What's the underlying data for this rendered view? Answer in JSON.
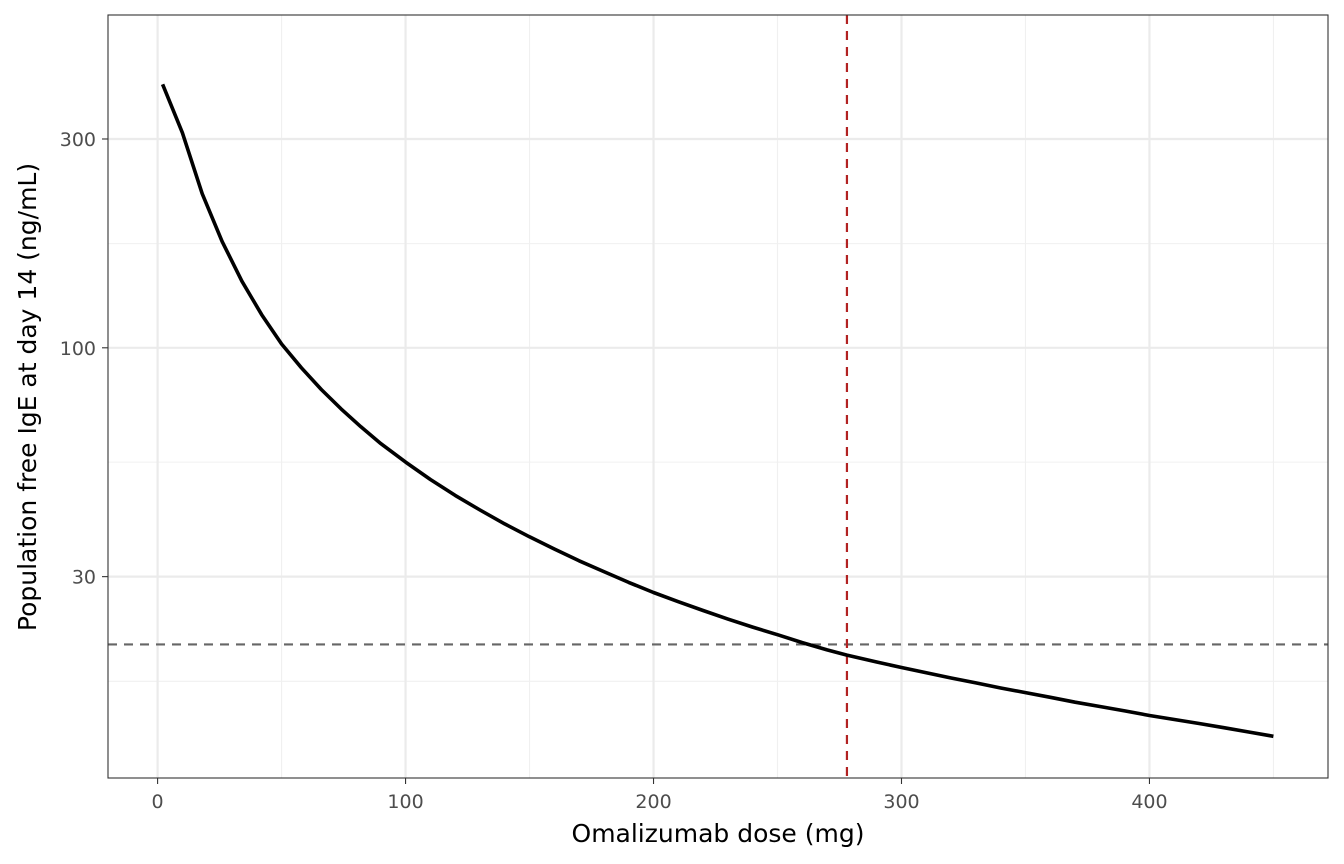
{
  "chart_data": {
    "type": "line",
    "title": "",
    "xlabel": "Omalizumab dose (mg)",
    "ylabel": "Population free IgE at day 14 (ng/mL)",
    "xlim": [
      -20,
      472
    ],
    "ylim": [
      10.4,
      576
    ],
    "y_scale": "log",
    "x_ticks": [
      0,
      100,
      200,
      300,
      400
    ],
    "x_tick_labels": [
      "0",
      "100",
      "200",
      "300",
      "400"
    ],
    "y_ticks": [
      30,
      100,
      300
    ],
    "y_tick_labels": [
      "30",
      "100",
      "300"
    ],
    "y_minor_ticks": [
      17.3,
      54.8,
      173
    ],
    "grid": true,
    "series": [
      {
        "color": "#000000",
        "x": [
          2,
          10,
          18,
          26,
          34,
          42,
          50,
          58,
          66,
          74,
          82,
          90,
          100,
          110,
          120,
          130,
          140,
          150,
          160,
          170,
          180,
          190,
          200,
          210,
          220,
          230,
          240,
          250,
          260,
          270,
          278,
          290,
          300,
          310,
          320,
          330,
          340,
          350,
          360,
          370,
          380,
          390,
          400,
          410,
          420,
          430,
          440,
          450
        ],
        "y": [
          400,
          310,
          225,
          175,
          142,
          119,
          102,
          90,
          80.3,
          72.5,
          66,
          60.4,
          54.8,
          50,
          46,
          42.6,
          39.6,
          37,
          34.7,
          32.6,
          30.8,
          29.1,
          27.6,
          26.3,
          25.1,
          24,
          23,
          22.1,
          21.2,
          20.4,
          19.85,
          19.15,
          18.6,
          18.1,
          17.6,
          17.15,
          16.7,
          16.3,
          15.9,
          15.5,
          15.15,
          14.8,
          14.45,
          14.15,
          13.85,
          13.55,
          13.25,
          12.95
        ]
      }
    ],
    "reference_lines": [
      {
        "orientation": "horizontal",
        "y": 21.0,
        "color": "#666666",
        "style": "dashed"
      },
      {
        "orientation": "vertical",
        "x": 278,
        "color": "#b22222",
        "style": "dashed"
      }
    ]
  }
}
